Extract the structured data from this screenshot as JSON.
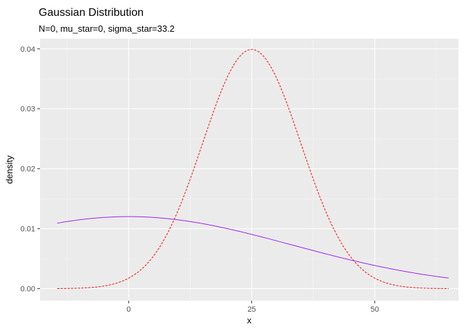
{
  "chart_data": {
    "type": "line",
    "title": "Gaussian Distribution",
    "subtitle": "N=0, mu_star=0, sigma_star=33.2",
    "xlabel": "x",
    "ylabel": "density",
    "xlim": [
      -18,
      67
    ],
    "ylim": [
      -0.002,
      0.0417
    ],
    "x_ticks": [
      0,
      25,
      50
    ],
    "x_tick_labels": [
      "0",
      "25",
      "50"
    ],
    "x_minor_ticks": [
      -12.5,
      12.5,
      37.5,
      62.5
    ],
    "y_ticks": [
      0.0,
      0.01,
      0.02,
      0.03,
      0.04
    ],
    "y_tick_labels": [
      "0.00",
      "0.01",
      "0.02",
      "0.03",
      "0.04"
    ],
    "y_minor_ticks": [
      0.005,
      0.015,
      0.025,
      0.035
    ],
    "grid": true,
    "legend": "none",
    "x_range": [
      -14.5,
      65
    ],
    "series": [
      {
        "color": "#a020f0",
        "linestyle": "solid",
        "mean": 0,
        "sd": 33.2
      },
      {
        "color": "#ff0000",
        "linestyle": "dashed",
        "mean": 25,
        "sd": 10
      }
    ]
  }
}
